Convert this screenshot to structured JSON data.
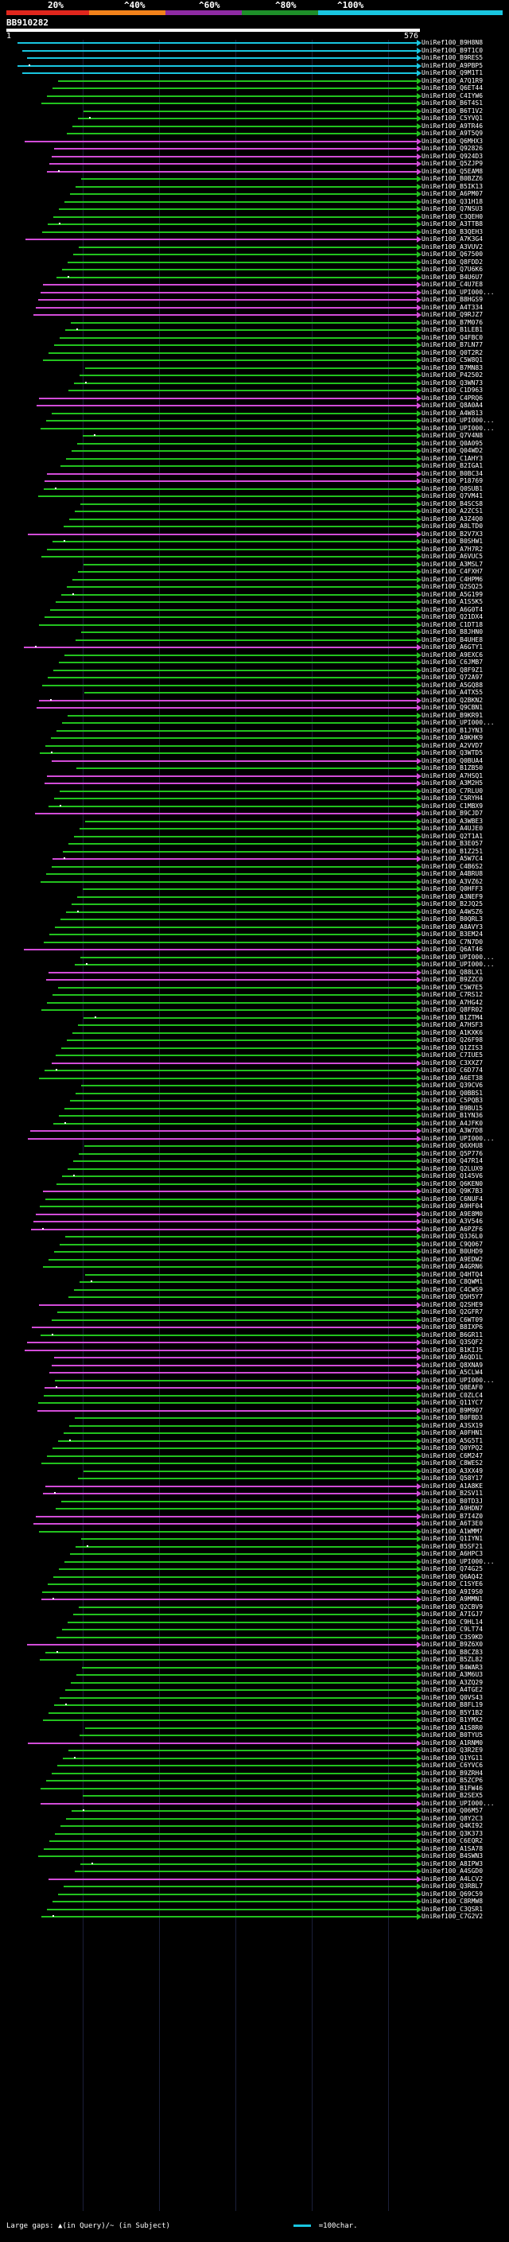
{
  "scale": {
    "labels": [
      "20%",
      "^40%",
      "^60%",
      "^80%",
      "^100%"
    ],
    "colors": [
      "#e0261d",
      "#f2821b",
      "#8e2aa3",
      "#1e8f29",
      "#19c6e0"
    ]
  },
  "query": {
    "id": "BB910282",
    "start": "1",
    "end": "576"
  },
  "rows": [
    {
      "label": "UniRef100_B9H8N8",
      "color": "cyan"
    },
    {
      "label": "UniRef100_B9T1C0",
      "color": "cyan"
    },
    {
      "label": "UniRef100_B9RES5",
      "color": "cyan"
    },
    {
      "label": "UniRef100_A9PBP5",
      "color": "cyan"
    },
    {
      "label": "UniRef100_Q9M1T1",
      "color": "cyan"
    },
    {
      "label": "UniRef100_A7Q1R9",
      "color": "green"
    },
    {
      "label": "UniRef100_Q6ET44",
      "color": "green"
    },
    {
      "label": "UniRef100_C4IYW6",
      "color": "green"
    },
    {
      "label": "UniRef100_B6T4S1",
      "color": "green"
    },
    {
      "label": "UniRef100_B6T1V2",
      "color": "green"
    },
    {
      "label": "UniRef100_C5YVQ1",
      "color": "green"
    },
    {
      "label": "UniRef100_A9TR46",
      "color": "green"
    },
    {
      "label": "UniRef100_A9T5Q9",
      "color": "green"
    },
    {
      "label": "UniRef100_Q6MHX3",
      "color": "magenta"
    },
    {
      "label": "UniRef100_Q92826",
      "color": "magenta"
    },
    {
      "label": "UniRef100_Q924D3",
      "color": "magenta"
    },
    {
      "label": "UniRef100_Q5ZJP9",
      "color": "magenta"
    },
    {
      "label": "UniRef100_Q5EAM8",
      "color": "magenta"
    },
    {
      "label": "UniRef100_B0BZZ6",
      "color": "green"
    },
    {
      "label": "UniRef100_B5IK13",
      "color": "green"
    },
    {
      "label": "UniRef100_A6PM07",
      "color": "green"
    },
    {
      "label": "UniRef100_Q31H18",
      "color": "green"
    },
    {
      "label": "UniRef100_Q7NSU3",
      "color": "green"
    },
    {
      "label": "UniRef100_C3QEH0",
      "color": "green"
    },
    {
      "label": "UniRef100_A3TTB8",
      "color": "green"
    },
    {
      "label": "UniRef100_B3QEH3",
      "color": "green"
    },
    {
      "label": "UniRef100_A7K3G4",
      "color": "magenta"
    },
    {
      "label": "UniRef100_A3VUV2",
      "color": "green"
    },
    {
      "label": "UniRef100_Q67500",
      "color": "green"
    },
    {
      "label": "UniRef100_Q8FDD2",
      "color": "green"
    },
    {
      "label": "UniRef100_Q7U6K6",
      "color": "green"
    },
    {
      "label": "UniRef100_B4U6U7",
      "color": "green"
    },
    {
      "label": "UniRef100_C4U7E8",
      "color": "magenta"
    },
    {
      "label": "UniRef100_UPI000...",
      "color": "magenta"
    },
    {
      "label": "UniRef100_B8HGS9",
      "color": "magenta"
    },
    {
      "label": "UniRef100_A4T334",
      "color": "magenta"
    },
    {
      "label": "UniRef100_Q9RJZ7",
      "color": "magenta"
    },
    {
      "label": "UniRef100_B7M076",
      "color": "green"
    },
    {
      "label": "UniRef100_B1LEB1",
      "color": "green"
    },
    {
      "label": "UniRef100_Q4FBC0",
      "color": "green"
    },
    {
      "label": "UniRef100_B7LN77",
      "color": "green"
    },
    {
      "label": "UniRef100_Q0T2R2",
      "color": "green"
    },
    {
      "label": "UniRef100_C5W8Q1",
      "color": "green"
    },
    {
      "label": "UniRef100_B7MN83",
      "color": "green"
    },
    {
      "label": "UniRef100_P42502",
      "color": "green"
    },
    {
      "label": "UniRef100_Q3WN73",
      "color": "green"
    },
    {
      "label": "UniRef100_C1D963",
      "color": "green"
    },
    {
      "label": "UniRef100_C4PRQ6",
      "color": "magenta"
    },
    {
      "label": "UniRef100_Q8A0A4",
      "color": "magenta"
    },
    {
      "label": "UniRef100_A4W813",
      "color": "green"
    },
    {
      "label": "UniRef100_UPI000...",
      "color": "green"
    },
    {
      "label": "UniRef100_UPI000...",
      "color": "green"
    },
    {
      "label": "UniRef100_Q7V4N8",
      "color": "green"
    },
    {
      "label": "UniRef100_Q0A095",
      "color": "green"
    },
    {
      "label": "UniRef100_Q04WD2",
      "color": "green"
    },
    {
      "label": "UniRef100_C1AHY3",
      "color": "green"
    },
    {
      "label": "UniRef100_B2IGA1",
      "color": "green"
    },
    {
      "label": "UniRef100_B0BC34",
      "color": "magenta"
    },
    {
      "label": "UniRef100_P18769",
      "color": "magenta"
    },
    {
      "label": "UniRef100_Q0SUB1",
      "color": "green"
    },
    {
      "label": "UniRef100_Q7VM41",
      "color": "green"
    },
    {
      "label": "UniRef100_B4SCS8",
      "color": "green"
    },
    {
      "label": "UniRef100_A2ZCS1",
      "color": "green"
    },
    {
      "label": "UniRef100_A3Z4Q0",
      "color": "green"
    },
    {
      "label": "UniRef100_A8LTD0",
      "color": "green"
    },
    {
      "label": "UniRef100_B2V7X3",
      "color": "magenta"
    },
    {
      "label": "UniRef100_B0SHW1",
      "color": "green"
    },
    {
      "label": "UniRef100_A7H7R2",
      "color": "green"
    },
    {
      "label": "UniRef100_A6VUC5",
      "color": "green"
    },
    {
      "label": "UniRef100_A3MSL7",
      "color": "green"
    },
    {
      "label": "UniRef100_C4FXH7",
      "color": "green"
    },
    {
      "label": "UniRef100_C4HPM6",
      "color": "green"
    },
    {
      "label": "UniRef100_Q2SQ25",
      "color": "green"
    },
    {
      "label": "UniRef100_A5G199",
      "color": "green"
    },
    {
      "label": "UniRef100_A1S5K5",
      "color": "green"
    },
    {
      "label": "UniRef100_A6G0T4",
      "color": "green"
    },
    {
      "label": "UniRef100_Q21DX4",
      "color": "green"
    },
    {
      "label": "UniRef100_C1DT18",
      "color": "green"
    },
    {
      "label": "UniRef100_B8JHN0",
      "color": "green"
    },
    {
      "label": "UniRef100_B4UHE8",
      "color": "green"
    },
    {
      "label": "UniRef100_A6GTY1",
      "color": "magenta"
    },
    {
      "label": "UniRef100_A9EXC6",
      "color": "green"
    },
    {
      "label": "UniRef100_C6JMB7",
      "color": "green"
    },
    {
      "label": "UniRef100_Q8F9Z1",
      "color": "green"
    },
    {
      "label": "UniRef100_Q72A97",
      "color": "green"
    },
    {
      "label": "UniRef100_A5GQ88",
      "color": "green"
    },
    {
      "label": "UniRef100_A4TX55",
      "color": "green"
    },
    {
      "label": "UniRef100_Q2BKN2",
      "color": "magenta"
    },
    {
      "label": "UniRef100_Q9CBN1",
      "color": "magenta"
    },
    {
      "label": "UniRef100_B9KR91",
      "color": "green"
    },
    {
      "label": "UniRef100_UPI000...",
      "color": "green"
    },
    {
      "label": "UniRef100_B1JYN3",
      "color": "green"
    },
    {
      "label": "UniRef100_A9KHK9",
      "color": "green"
    },
    {
      "label": "UniRef100_A2VVD7",
      "color": "green"
    },
    {
      "label": "UniRef100_Q3WTD5",
      "color": "green"
    },
    {
      "label": "UniRef100_Q0BUA4",
      "color": "magenta"
    },
    {
      "label": "UniRef100_B1ZB50",
      "color": "green"
    },
    {
      "label": "UniRef100_A7HSQ1",
      "color": "magenta"
    },
    {
      "label": "UniRef100_A3M2H5",
      "color": "magenta"
    },
    {
      "label": "UniRef100_C7RLU0",
      "color": "green"
    },
    {
      "label": "UniRef100_C5RYH4",
      "color": "green"
    },
    {
      "label": "UniRef100_C1MBX9",
      "color": "green"
    },
    {
      "label": "UniRef100_B9CJD7",
      "color": "magenta"
    },
    {
      "label": "UniRef100_A3WBE3",
      "color": "green"
    },
    {
      "label": "UniRef100_A4UJE0",
      "color": "green"
    },
    {
      "label": "UniRef100_Q2T1A1",
      "color": "green"
    },
    {
      "label": "UniRef100_B3E057",
      "color": "green"
    },
    {
      "label": "UniRef100_B1Z251",
      "color": "green"
    },
    {
      "label": "UniRef100_A5W7C4",
      "color": "magenta"
    },
    {
      "label": "UniRef100_C4B6S2",
      "color": "green"
    },
    {
      "label": "UniRef100_A4BRU8",
      "color": "green"
    },
    {
      "label": "UniRef100_A3VZ62",
      "color": "green"
    },
    {
      "label": "UniRef100_Q0HFF3",
      "color": "green"
    },
    {
      "label": "UniRef100_A3NEF9",
      "color": "green"
    },
    {
      "label": "UniRef100_B2JQ25",
      "color": "green"
    },
    {
      "label": "UniRef100_A4WSZ6",
      "color": "green"
    },
    {
      "label": "UniRef100_B0QRL3",
      "color": "green"
    },
    {
      "label": "UniRef100_A8AVY3",
      "color": "green"
    },
    {
      "label": "UniRef100_B3EM24",
      "color": "green"
    },
    {
      "label": "UniRef100_C7N7D0",
      "color": "green"
    },
    {
      "label": "UniRef100_Q6AT46",
      "color": "magenta"
    },
    {
      "label": "UniRef100_UPI000...",
      "color": "green"
    },
    {
      "label": "UniRef100_UPI000...",
      "color": "green"
    },
    {
      "label": "UniRef100_Q88LX1",
      "color": "magenta"
    },
    {
      "label": "UniRef100_B9ZZC0",
      "color": "magenta"
    },
    {
      "label": "UniRef100_C5W7E5",
      "color": "green"
    },
    {
      "label": "UniRef100_C7RS12",
      "color": "green"
    },
    {
      "label": "UniRef100_A7HG42",
      "color": "green"
    },
    {
      "label": "UniRef100_Q8FR02",
      "color": "green"
    },
    {
      "label": "UniRef100_B1ZTM4",
      "color": "green"
    },
    {
      "label": "UniRef100_A7HSF3",
      "color": "green"
    },
    {
      "label": "UniRef100_A1KXK6",
      "color": "green"
    },
    {
      "label": "UniRef100_Q26F98",
      "color": "green"
    },
    {
      "label": "UniRef100_Q1ZIS3",
      "color": "green"
    },
    {
      "label": "UniRef100_C7IUE5",
      "color": "green"
    },
    {
      "label": "UniRef100_C3XXZ7",
      "color": "magenta"
    },
    {
      "label": "UniRef100_C6D774",
      "color": "green"
    },
    {
      "label": "UniRef100_A6ET38",
      "color": "green"
    },
    {
      "label": "UniRef100_Q39CV6",
      "color": "green"
    },
    {
      "label": "UniRef100_Q0BBS1",
      "color": "green"
    },
    {
      "label": "UniRef100_C5PQB3",
      "color": "green"
    },
    {
      "label": "UniRef100_B9BU15",
      "color": "green"
    },
    {
      "label": "UniRef100_B1YN36",
      "color": "green"
    },
    {
      "label": "UniRef100_A4JFK0",
      "color": "green"
    },
    {
      "label": "UniRef100_A3W7D8",
      "color": "magenta"
    },
    {
      "label": "UniRef100_UPI000...",
      "color": "magenta"
    },
    {
      "label": "UniRef100_Q6XHU8",
      "color": "green"
    },
    {
      "label": "UniRef100_Q5P776",
      "color": "green"
    },
    {
      "label": "UniRef100_Q47R14",
      "color": "green"
    },
    {
      "label": "UniRef100_Q2LUX9",
      "color": "green"
    },
    {
      "label": "UniRef100_Q145V6",
      "color": "green"
    },
    {
      "label": "UniRef100_Q6KEN0",
      "color": "green"
    },
    {
      "label": "UniRef100_Q9K7B3",
      "color": "magenta"
    },
    {
      "label": "UniRef100_C6NUF4",
      "color": "green"
    },
    {
      "label": "UniRef100_A9HF04",
      "color": "green"
    },
    {
      "label": "UniRef100_A9E8M0",
      "color": "magenta"
    },
    {
      "label": "UniRef100_A3V546",
      "color": "magenta"
    },
    {
      "label": "UniRef100_A6PZF6",
      "color": "magenta"
    },
    {
      "label": "UniRef100_Q3J6L0",
      "color": "green"
    },
    {
      "label": "UniRef100_C9Q067",
      "color": "green"
    },
    {
      "label": "UniRef100_B0UHD9",
      "color": "green"
    },
    {
      "label": "UniRef100_A9EDW2",
      "color": "green"
    },
    {
      "label": "UniRef100_A4GRN6",
      "color": "green"
    },
    {
      "label": "UniRef100_Q4HTQ4",
      "color": "green"
    },
    {
      "label": "UniRef100_C8QWM1",
      "color": "green"
    },
    {
      "label": "UniRef100_C4CWS9",
      "color": "green"
    },
    {
      "label": "UniRef100_Q5H5Y7",
      "color": "green"
    },
    {
      "label": "UniRef100_Q2SHE9",
      "color": "magenta"
    },
    {
      "label": "UniRef100_Q2GFR7",
      "color": "green"
    },
    {
      "label": "UniRef100_C6WT09",
      "color": "green"
    },
    {
      "label": "UniRef100_B8IXP6",
      "color": "magenta"
    },
    {
      "label": "UniRef100_B6GR11",
      "color": "green"
    },
    {
      "label": "UniRef100_Q3SQF2",
      "color": "magenta"
    },
    {
      "label": "UniRef100_B1KIJ5",
      "color": "magenta"
    },
    {
      "label": "UniRef100_A6QD1L",
      "color": "magenta"
    },
    {
      "label": "UniRef100_Q8XNA9",
      "color": "magenta"
    },
    {
      "label": "UniRef100_A5CLW4",
      "color": "magenta"
    },
    {
      "label": "UniRef100_UPI000...",
      "color": "green"
    },
    {
      "label": "UniRef100_Q8EAF0",
      "color": "magenta"
    },
    {
      "label": "UniRef100_C0ZLC4",
      "color": "green"
    },
    {
      "label": "UniRef100_Q11YC7",
      "color": "green"
    },
    {
      "label": "UniRef100_B9M907",
      "color": "magenta"
    },
    {
      "label": "UniRef100_B0FBD3",
      "color": "green"
    },
    {
      "label": "UniRef100_A3SX19",
      "color": "green"
    },
    {
      "label": "UniRef100_A0FHN1",
      "color": "green"
    },
    {
      "label": "UniRef100_A5G5T1",
      "color": "green"
    },
    {
      "label": "UniRef100_Q0YPQ2",
      "color": "green"
    },
    {
      "label": "UniRef100_C6M247",
      "color": "green"
    },
    {
      "label": "UniRef100_C8WES2",
      "color": "green"
    },
    {
      "label": "UniRef100_A3XX49",
      "color": "green"
    },
    {
      "label": "UniRef100_Q58Y17",
      "color": "green"
    },
    {
      "label": "UniRef100_A1A8KE",
      "color": "magenta"
    },
    {
      "label": "UniRef100_B2SV11",
      "color": "magenta"
    },
    {
      "label": "UniRef100_B0TD3J",
      "color": "green"
    },
    {
      "label": "UniRef100_A9HDN7",
      "color": "green"
    },
    {
      "label": "UniRef100_B7I4Z0",
      "color": "magenta"
    },
    {
      "label": "UniRef100_A6T3E0",
      "color": "magenta"
    },
    {
      "label": "UniRef100_A1WMM7",
      "color": "green"
    },
    {
      "label": "UniRef100_Q1IYN1",
      "color": "green"
    },
    {
      "label": "UniRef100_B5SF21",
      "color": "green"
    },
    {
      "label": "UniRef100_A6HPC3",
      "color": "green"
    },
    {
      "label": "UniRef100_UPI000...",
      "color": "green"
    },
    {
      "label": "UniRef100_Q74G25",
      "color": "green"
    },
    {
      "label": "UniRef100_Q6AQ42",
      "color": "green"
    },
    {
      "label": "UniRef100_C1SYE6",
      "color": "green"
    },
    {
      "label": "UniRef100_A9I9S0",
      "color": "green"
    },
    {
      "label": "UniRef100_A9MMN1",
      "color": "magenta"
    },
    {
      "label": "UniRef100_Q2CBV9",
      "color": "green"
    },
    {
      "label": "UniRef100_A7IGJ7",
      "color": "green"
    },
    {
      "label": "UniRef100_C9HL14",
      "color": "green"
    },
    {
      "label": "UniRef100_C9LT74",
      "color": "green"
    },
    {
      "label": "UniRef100_C3S9KD",
      "color": "green"
    },
    {
      "label": "UniRef100_B9Z6X0",
      "color": "magenta"
    },
    {
      "label": "UniRef100_B8CZ83",
      "color": "green"
    },
    {
      "label": "UniRef100_B5ZL82",
      "color": "green"
    },
    {
      "label": "UniRef100_B4WAR3",
      "color": "green"
    },
    {
      "label": "UniRef100_A3M6U3",
      "color": "green"
    },
    {
      "label": "UniRef100_A3ZQ29",
      "color": "green"
    },
    {
      "label": "UniRef100_A4TGE2",
      "color": "green"
    },
    {
      "label": "UniRef100_Q0VS43",
      "color": "green"
    },
    {
      "label": "UniRef100_B8FL19",
      "color": "green"
    },
    {
      "label": "UniRef100_B5Y1B2",
      "color": "green"
    },
    {
      "label": "UniRef100_B1YMX2",
      "color": "green"
    },
    {
      "label": "UniRef100_A1S8R0",
      "color": "green"
    },
    {
      "label": "UniRef100_B0TYU5",
      "color": "green"
    },
    {
      "label": "UniRef100_A1RNM0",
      "color": "magenta"
    },
    {
      "label": "UniRef100_Q3R2E9",
      "color": "green"
    },
    {
      "label": "UniRef100_Q1YG11",
      "color": "green"
    },
    {
      "label": "UniRef100_C6YVC6",
      "color": "green"
    },
    {
      "label": "UniRef100_B9ZRH4",
      "color": "green"
    },
    {
      "label": "UniRef100_B5ZCP6",
      "color": "green"
    },
    {
      "label": "UniRef100_B1FW46",
      "color": "green"
    },
    {
      "label": "UniRef100_B2SEX5",
      "color": "green"
    },
    {
      "label": "UniRef100_UPI000...",
      "color": "magenta"
    },
    {
      "label": "UniRef100_Q06M57",
      "color": "green"
    },
    {
      "label": "UniRef100_Q8Y2C3",
      "color": "green"
    },
    {
      "label": "UniRef100_Q4KI92",
      "color": "green"
    },
    {
      "label": "UniRef100_Q3K373",
      "color": "green"
    },
    {
      "label": "UniRef100_C6EQR2",
      "color": "green"
    },
    {
      "label": "UniRef100_A1SA78",
      "color": "green"
    },
    {
      "label": "UniRef100_B4SWN3",
      "color": "green"
    },
    {
      "label": "UniRef100_A8IPW3",
      "color": "green"
    },
    {
      "label": "UniRef100_A4SGD0",
      "color": "green"
    },
    {
      "label": "UniRef100_A4LCV2",
      "color": "magenta"
    },
    {
      "label": "UniRef100_Q3RBL7",
      "color": "green"
    },
    {
      "label": "UniRef100_Q69C59",
      "color": "green"
    },
    {
      "label": "UniRef100_C8RMW8",
      "color": "green"
    },
    {
      "label": "UniRef100_C3QSR1",
      "color": "green"
    },
    {
      "label": "UniRef100_C7G2V2",
      "color": "green"
    }
  ],
  "legend": {
    "gaps_text": "Large gaps: ▲(in Query)/~ (in Subject)",
    "scale_text": "=100char."
  }
}
